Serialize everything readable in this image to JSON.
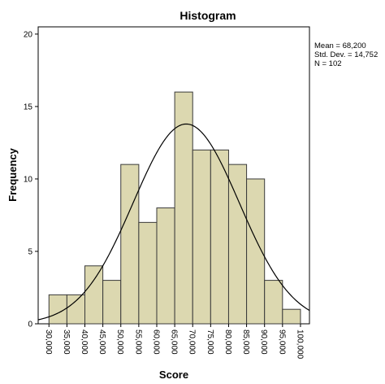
{
  "chart_data": {
    "type": "bar",
    "title": "Histogram",
    "xlabel": "Score",
    "ylabel": "Frequency",
    "bin_edges": [
      30,
      35,
      40,
      45,
      50,
      55,
      60,
      65,
      70,
      75,
      80,
      85,
      90,
      95,
      100
    ],
    "categories": [
      "30-35",
      "35-40",
      "40-45",
      "45-50",
      "50-55",
      "55-60",
      "60-65",
      "65-70",
      "70-75",
      "75-80",
      "80-85",
      "85-90",
      "90-95",
      "95-100"
    ],
    "values": [
      2,
      2,
      4,
      3,
      11,
      7,
      8,
      16,
      12,
      12,
      11,
      10,
      3,
      1
    ],
    "x_tick_labels": [
      "30,000",
      "35,000",
      "40,000",
      "45,000",
      "50,000",
      "55,000",
      "60,000",
      "65,000",
      "70,000",
      "75,000",
      "80,000",
      "85,000",
      "90,000",
      "95,000",
      "100,000"
    ],
    "y_ticks": [
      "0",
      "5",
      "10",
      "15",
      "20"
    ],
    "ylim": [
      0,
      20.5
    ],
    "xlim": [
      27,
      102.5
    ],
    "grid": false,
    "stats": {
      "mean_text": "Mean = 68,200",
      "std_text": "Std. Dev. = 14,752",
      "n_text": "N = 102",
      "mean": 68.2,
      "std_dev": 14.752,
      "n": 102
    },
    "normal_curve": true,
    "colors": {
      "bar_fill": "#dcd8b0",
      "bar_stroke": "#3a3a3a",
      "curve": "#000000"
    }
  }
}
